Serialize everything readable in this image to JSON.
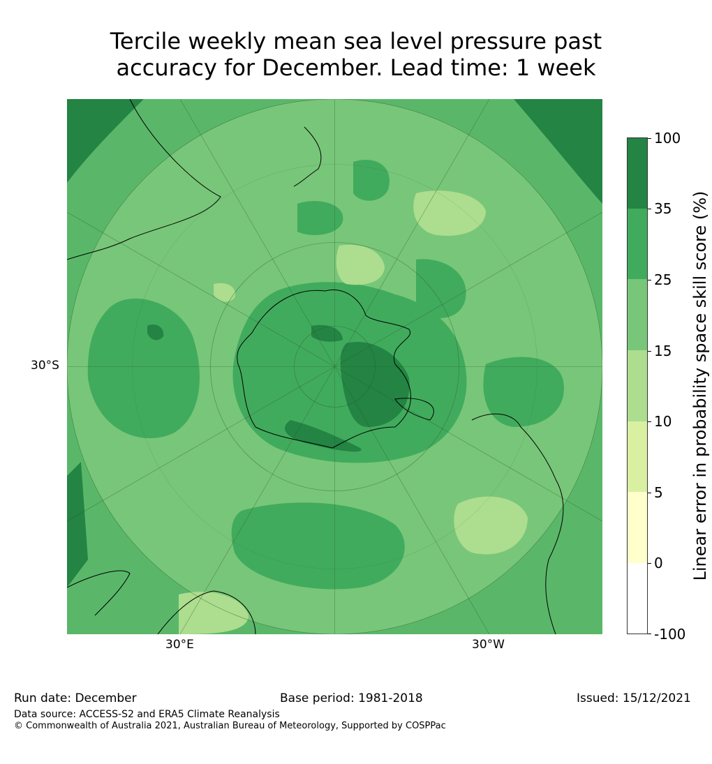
{
  "title_line1": "Tercile weekly mean sea level pressure past",
  "title_line2": "accuracy for December. Lead time: 1 week",
  "map": {
    "lat_label": "30°S",
    "lon_label_left": "30°E",
    "lon_label_right": "30°W",
    "colors": {
      "c15_25": "#78c679",
      "c25_35": "#41ab5d",
      "c35_100": "#238443",
      "c10_15": "#addd8e",
      "ocean_grid": "#2a5a2a",
      "coast": "#000000"
    }
  },
  "colorbar": {
    "label": "Linear error in probability space skill score (%)",
    "ticks": [
      "100",
      "35",
      "25",
      "15",
      "10",
      "5",
      "0",
      "-100"
    ],
    "colors": [
      "#238443",
      "#41ab5d",
      "#78c679",
      "#addd8e",
      "#d9f0a3",
      "#ffffcc",
      "#ffffff"
    ]
  },
  "footer": {
    "run_date": "Run date: December",
    "base_period": "Base period: 1981-2018",
    "issued": "Issued: 15/12/2021",
    "data_source": "Data source: ACCESS-S2 and ERA5 Climate Reanalysis",
    "copyright": "© Commonwealth of Australia 2021, Australian Bureau of Meteorology, Supported by COSPPac"
  }
}
